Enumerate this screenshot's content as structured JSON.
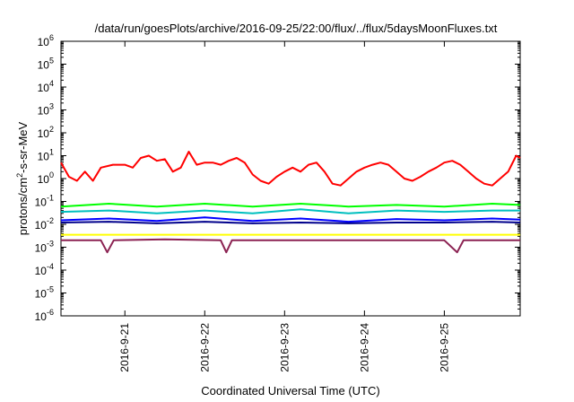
{
  "chart_data": {
    "type": "line",
    "title": "/data/run/goesPlots/archive/2016-09-25/22:00/flux/../flux/5daysMoonFluxes.txt",
    "xlabel": "Coordinated Universal Time (UTC)",
    "ylabel_parts": [
      "protons/cm",
      "2",
      "-s-sr-MeV"
    ],
    "yscale": "log",
    "ylim_exponents": [
      -6,
      6
    ],
    "y_ticks": [
      {
        "base": "10",
        "exp": "6"
      },
      {
        "base": "10",
        "exp": "5"
      },
      {
        "base": "10",
        "exp": "4"
      },
      {
        "base": "10",
        "exp": "3"
      },
      {
        "base": "10",
        "exp": "2"
      },
      {
        "base": "10",
        "exp": "1"
      },
      {
        "base": "10",
        "exp": "0"
      },
      {
        "base": "10",
        "exp": "-1"
      },
      {
        "base": "10",
        "exp": "-2"
      },
      {
        "base": "10",
        "exp": "-3"
      },
      {
        "base": "10",
        "exp": "-4"
      },
      {
        "base": "10",
        "exp": "-5"
      },
      {
        "base": "10",
        "exp": "-6"
      }
    ],
    "x_ticks": [
      {
        "label": "2016-9-21",
        "day": 1
      },
      {
        "label": "2016-9-22",
        "day": 2
      },
      {
        "label": "2016-9-23",
        "day": 3
      },
      {
        "label": "2016-9-24",
        "day": 4
      },
      {
        "label": "2016-9-25",
        "day": 5
      }
    ],
    "xlim_days": [
      0.2,
      5.95
    ],
    "grid": false,
    "legend": "none",
    "series": [
      {
        "color": "#ff0000",
        "points": [
          [
            0.2,
            5
          ],
          [
            0.3,
            1.2
          ],
          [
            0.4,
            0.8
          ],
          [
            0.5,
            2
          ],
          [
            0.6,
            0.8
          ],
          [
            0.7,
            3
          ],
          [
            0.85,
            4
          ],
          [
            1.0,
            4
          ],
          [
            1.1,
            3
          ],
          [
            1.2,
            8
          ],
          [
            1.3,
            10
          ],
          [
            1.4,
            6
          ],
          [
            1.5,
            7
          ],
          [
            1.6,
            2
          ],
          [
            1.7,
            3
          ],
          [
            1.8,
            15
          ],
          [
            1.9,
            4
          ],
          [
            2.0,
            5
          ],
          [
            2.1,
            5
          ],
          [
            2.2,
            4
          ],
          [
            2.3,
            6
          ],
          [
            2.4,
            8
          ],
          [
            2.5,
            5
          ],
          [
            2.6,
            1.5
          ],
          [
            2.7,
            0.8
          ],
          [
            2.8,
            0.6
          ],
          [
            2.9,
            1.2
          ],
          [
            3.0,
            2
          ],
          [
            3.1,
            3
          ],
          [
            3.2,
            2
          ],
          [
            3.3,
            4
          ],
          [
            3.4,
            5
          ],
          [
            3.5,
            2
          ],
          [
            3.6,
            0.6
          ],
          [
            3.7,
            0.5
          ],
          [
            3.8,
            1
          ],
          [
            3.9,
            2
          ],
          [
            4.0,
            3
          ],
          [
            4.1,
            4
          ],
          [
            4.2,
            5
          ],
          [
            4.3,
            4
          ],
          [
            4.4,
            2
          ],
          [
            4.5,
            1
          ],
          [
            4.6,
            0.8
          ],
          [
            4.7,
            1.2
          ],
          [
            4.8,
            2
          ],
          [
            4.9,
            3
          ],
          [
            5.0,
            5
          ],
          [
            5.1,
            6
          ],
          [
            5.2,
            4
          ],
          [
            5.3,
            2
          ],
          [
            5.4,
            1
          ],
          [
            5.5,
            0.6
          ],
          [
            5.6,
            0.5
          ],
          [
            5.7,
            1
          ],
          [
            5.8,
            2
          ],
          [
            5.9,
            10
          ],
          [
            5.95,
            8
          ]
        ]
      },
      {
        "color": "#00ff00",
        "points": [
          [
            0.2,
            0.06
          ],
          [
            0.8,
            0.08
          ],
          [
            1.4,
            0.06
          ],
          [
            2.0,
            0.08
          ],
          [
            2.6,
            0.06
          ],
          [
            3.2,
            0.08
          ],
          [
            3.8,
            0.06
          ],
          [
            4.4,
            0.07
          ],
          [
            5.0,
            0.06
          ],
          [
            5.6,
            0.08
          ],
          [
            5.95,
            0.07
          ]
        ]
      },
      {
        "color": "#00bfbf",
        "points": [
          [
            0.2,
            0.035
          ],
          [
            0.8,
            0.04
          ],
          [
            1.4,
            0.03
          ],
          [
            2.0,
            0.04
          ],
          [
            2.6,
            0.03
          ],
          [
            3.2,
            0.045
          ],
          [
            3.8,
            0.03
          ],
          [
            4.4,
            0.04
          ],
          [
            5.0,
            0.035
          ],
          [
            5.6,
            0.04
          ],
          [
            5.95,
            0.04
          ]
        ]
      },
      {
        "color": "#0000ff",
        "points": [
          [
            0.2,
            0.015
          ],
          [
            0.8,
            0.018
          ],
          [
            1.4,
            0.014
          ],
          [
            2.0,
            0.02
          ],
          [
            2.6,
            0.014
          ],
          [
            3.2,
            0.018
          ],
          [
            3.8,
            0.013
          ],
          [
            4.4,
            0.017
          ],
          [
            5.0,
            0.015
          ],
          [
            5.6,
            0.018
          ],
          [
            5.95,
            0.016
          ]
        ]
      },
      {
        "color": "#00008b",
        "points": [
          [
            0.2,
            0.012
          ],
          [
            0.8,
            0.013
          ],
          [
            1.4,
            0.011
          ],
          [
            2.0,
            0.013
          ],
          [
            2.6,
            0.011
          ],
          [
            3.2,
            0.012
          ],
          [
            3.8,
            0.011
          ],
          [
            4.4,
            0.012
          ],
          [
            5.0,
            0.012
          ],
          [
            5.6,
            0.013
          ],
          [
            5.95,
            0.012
          ]
        ]
      },
      {
        "color": "#ffff00",
        "points": [
          [
            0.2,
            0.0035
          ],
          [
            1.0,
            0.0035
          ],
          [
            2.0,
            0.0035
          ],
          [
            3.0,
            0.0035
          ],
          [
            4.0,
            0.0035
          ],
          [
            5.0,
            0.0035
          ],
          [
            5.95,
            0.0035
          ]
        ]
      },
      {
        "color": "#8b2252",
        "points": [
          [
            0.2,
            0.002
          ],
          [
            0.7,
            0.002
          ],
          [
            0.78,
            0.0006
          ],
          [
            0.86,
            0.002
          ],
          [
            1.5,
            0.0022
          ],
          [
            2.2,
            0.002
          ],
          [
            2.27,
            0.0006
          ],
          [
            2.34,
            0.002
          ],
          [
            3.0,
            0.002
          ],
          [
            4.0,
            0.002
          ],
          [
            5.0,
            0.002
          ],
          [
            5.16,
            0.0006
          ],
          [
            5.24,
            0.002
          ],
          [
            5.95,
            0.002
          ]
        ]
      }
    ]
  }
}
